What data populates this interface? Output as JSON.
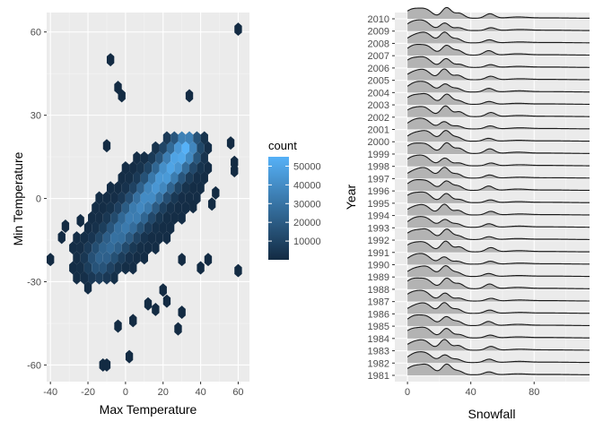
{
  "chart_data": [
    {
      "type": "hexbin",
      "xlabel": "Max Temperature",
      "ylabel": "Min Temperature",
      "xlim": [
        -42,
        66
      ],
      "ylim": [
        -66,
        67
      ],
      "xticks": [
        -40,
        -20,
        0,
        20,
        40,
        60
      ],
      "yticks": [
        -60,
        -30,
        0,
        30,
        60
      ],
      "grid": true,
      "legend": {
        "title": "count",
        "position": "right",
        "range": [
          0,
          55000
        ],
        "breaks": [
          10000,
          20000,
          30000,
          40000,
          50000
        ],
        "labels": [
          "10000",
          "20000",
          "30000",
          "40000",
          "50000"
        ],
        "low_color": "#132b43",
        "high_color": "#56b1f7"
      },
      "hexbin_layout": {
        "x_start": -40,
        "x_step": 4,
        "x_count": 26,
        "y_start": -61,
        "y_step": 3.6,
        "y_count": 34
      },
      "bins": [
        [
          -40,
          -22,
          1
        ],
        [
          60,
          61,
          1
        ],
        [
          -8,
          50,
          1
        ],
        [
          -12,
          -60,
          1
        ],
        [
          -10,
          -60,
          1
        ],
        [
          2,
          -57,
          1
        ],
        [
          -4,
          -46,
          1
        ],
        [
          28,
          -47,
          1
        ],
        [
          30,
          -41,
          1
        ],
        [
          60,
          -26,
          1
        ],
        [
          36,
          -3,
          1
        ],
        [
          46,
          -2,
          1
        ],
        [
          48,
          2,
          1
        ],
        [
          56,
          20,
          1
        ],
        [
          58,
          13,
          1
        ],
        [
          58,
          10,
          1
        ],
        [
          -4,
          40,
          1
        ],
        [
          -2,
          37,
          1
        ],
        [
          34,
          37,
          1
        ],
        [
          -10,
          19,
          1
        ],
        [
          30,
          -22,
          1
        ],
        [
          40,
          -25,
          1
        ],
        [
          44,
          -22,
          1
        ],
        [
          -34,
          -14,
          1
        ],
        [
          -32,
          -10,
          1
        ],
        [
          -24,
          -8,
          1
        ],
        [
          4,
          -44,
          1
        ],
        [
          12,
          -38,
          1
        ],
        [
          16,
          -40,
          1
        ],
        [
          22,
          -37,
          1
        ],
        [
          20,
          -33,
          1
        ]
      ],
      "density": {
        "core_start": [
          -14,
          -22
        ],
        "core_end": [
          32,
          18
        ],
        "core_peak_count": 55000,
        "body_center": [
          8,
          -4
        ],
        "body_angle_deg": 34,
        "body_half_length": 44,
        "body_half_width": 17
      }
    },
    {
      "type": "ridgeline",
      "xlabel": "Snowfall",
      "ylabel": "Year",
      "xlim": [
        -8,
        115
      ],
      "xticks": [
        0,
        40,
        80
      ],
      "grid": true,
      "years": [
        "1981",
        "1982",
        "1983",
        "1984",
        "1985",
        "1986",
        "1987",
        "1988",
        "1989",
        "1990",
        "1991",
        "1992",
        "1993",
        "1994",
        "1995",
        "1996",
        "1997",
        "1998",
        "1999",
        "2000",
        "2001",
        "2002",
        "2003",
        "2004",
        "2005",
        "2006",
        "2007",
        "2008",
        "2009",
        "2010"
      ],
      "density_shape": {
        "range": [
          0,
          115
        ],
        "components": [
          {
            "mean": 4,
            "sd": 5,
            "weight": 1.0
          },
          {
            "mean": 12,
            "sd": 4,
            "weight": 0.85
          },
          {
            "mean": 24,
            "sd": 3,
            "weight": 1.1
          },
          {
            "mean": 32,
            "sd": 3,
            "weight": 0.45
          },
          {
            "mean": 52,
            "sd": 3,
            "weight": 0.4
          },
          {
            "mean": 70,
            "sd": 6,
            "weight": 0.12
          },
          {
            "mean": 90,
            "sd": 12,
            "weight": 0.05
          }
        ],
        "fill": "#b3b3b3",
        "line": "#1a1a1a"
      }
    }
  ]
}
